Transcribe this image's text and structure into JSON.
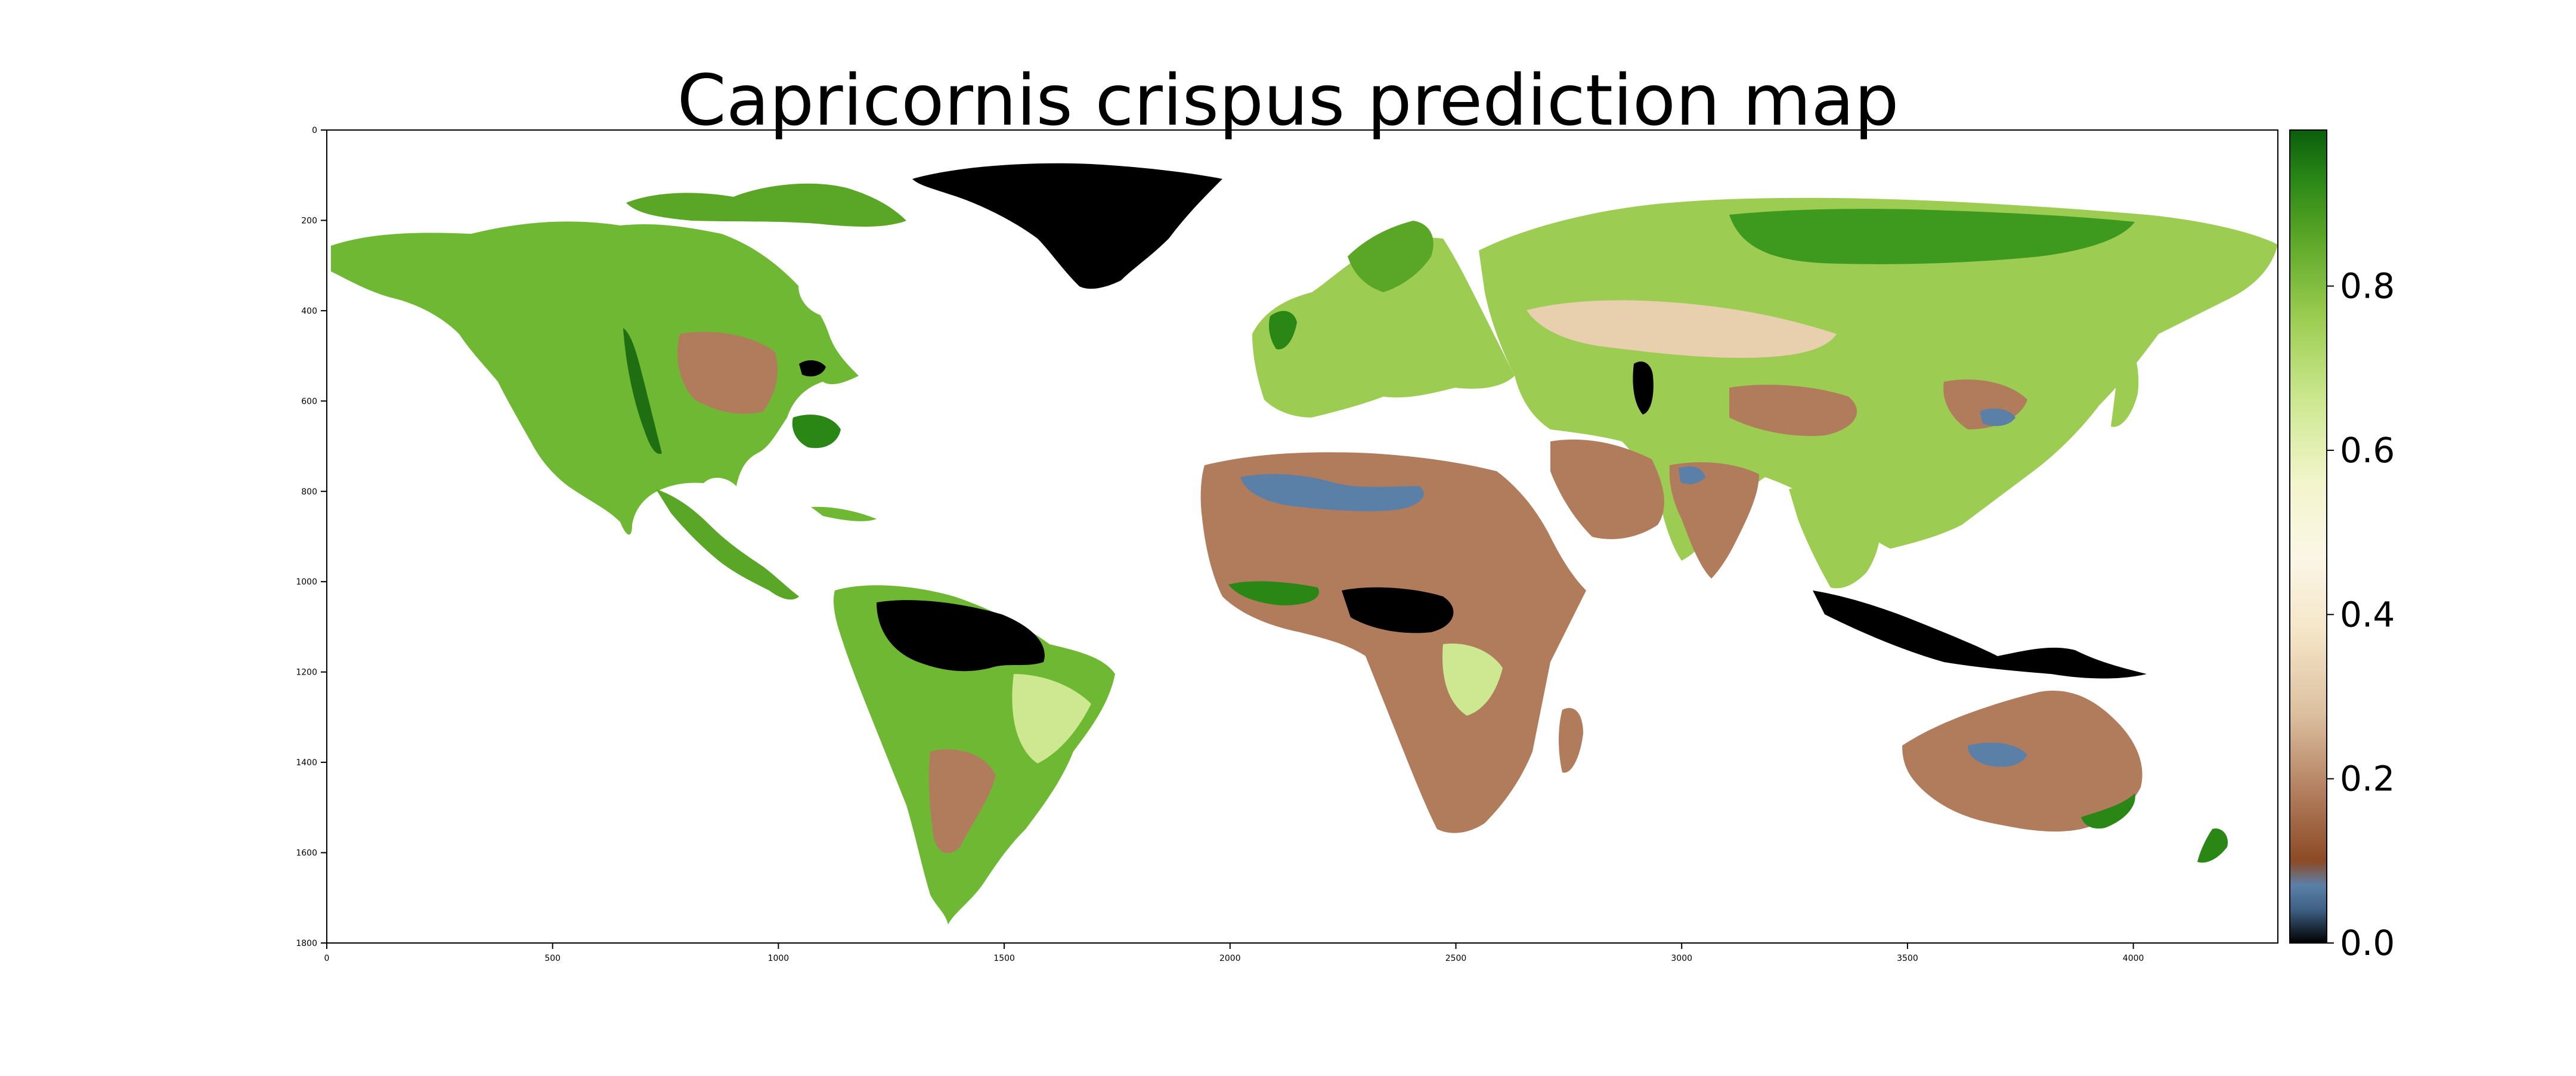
{
  "title": "Capricornis crispus prediction map",
  "axes": {
    "x_ticks": [
      "0",
      "500",
      "1000",
      "1500",
      "2000",
      "2500",
      "3000",
      "3500",
      "4000"
    ],
    "x_tick_values": [
      0,
      500,
      1000,
      1500,
      2000,
      2500,
      3000,
      3500,
      4000
    ],
    "x_range": [
      0,
      4320
    ],
    "y_ticks": [
      "0",
      "200",
      "400",
      "600",
      "800",
      "1000",
      "1200",
      "1400",
      "1600",
      "1800"
    ],
    "y_tick_values": [
      0,
      200,
      400,
      600,
      800,
      1000,
      1200,
      1400,
      1600,
      1800
    ],
    "y_range": [
      0,
      1800
    ],
    "y_inverted": true,
    "grid": false
  },
  "colorbar": {
    "tick_labels": [
      "0.0",
      "0.2",
      "0.4",
      "0.6",
      "0.8"
    ],
    "tick_values": [
      0.0,
      0.2,
      0.4,
      0.6,
      0.8
    ],
    "range": [
      0.0,
      0.99
    ],
    "placement": "right",
    "colormap": [
      {
        "v": 0.0,
        "color": "#000000"
      },
      {
        "v": 0.04,
        "color": "#3d5f82"
      },
      {
        "v": 0.07,
        "color": "#5b80a8"
      },
      {
        "v": 0.1,
        "color": "#8c4a25"
      },
      {
        "v": 0.18,
        "color": "#b07c5c"
      },
      {
        "v": 0.28,
        "color": "#dcc0a0"
      },
      {
        "v": 0.38,
        "color": "#f5e6c8"
      },
      {
        "v": 0.47,
        "color": "#fbf6e6"
      },
      {
        "v": 0.56,
        "color": "#f3f5cc"
      },
      {
        "v": 0.66,
        "color": "#cde890"
      },
      {
        "v": 0.76,
        "color": "#9ccd52"
      },
      {
        "v": 0.86,
        "color": "#5aa626"
      },
      {
        "v": 0.93,
        "color": "#2a8716"
      },
      {
        "v": 0.99,
        "color": "#0b5e0b"
      }
    ]
  },
  "chart_data": {
    "type": "heatmap",
    "title": "Capricornis crispus prediction map",
    "xlabel": "",
    "ylabel": "",
    "xlim": [
      0,
      4320
    ],
    "ylim": [
      1800,
      0
    ],
    "colorbar_range": [
      0.0,
      0.99
    ],
    "colorbar_ticks": [
      0.0,
      0.2,
      0.4,
      0.6,
      0.8
    ],
    "description_of_values": "world raster of predicted habitat suitability (0–1)"
  },
  "colors": {
    "background": "#ffffff",
    "ocean": "#ffffff",
    "nodata": "#000000"
  }
}
